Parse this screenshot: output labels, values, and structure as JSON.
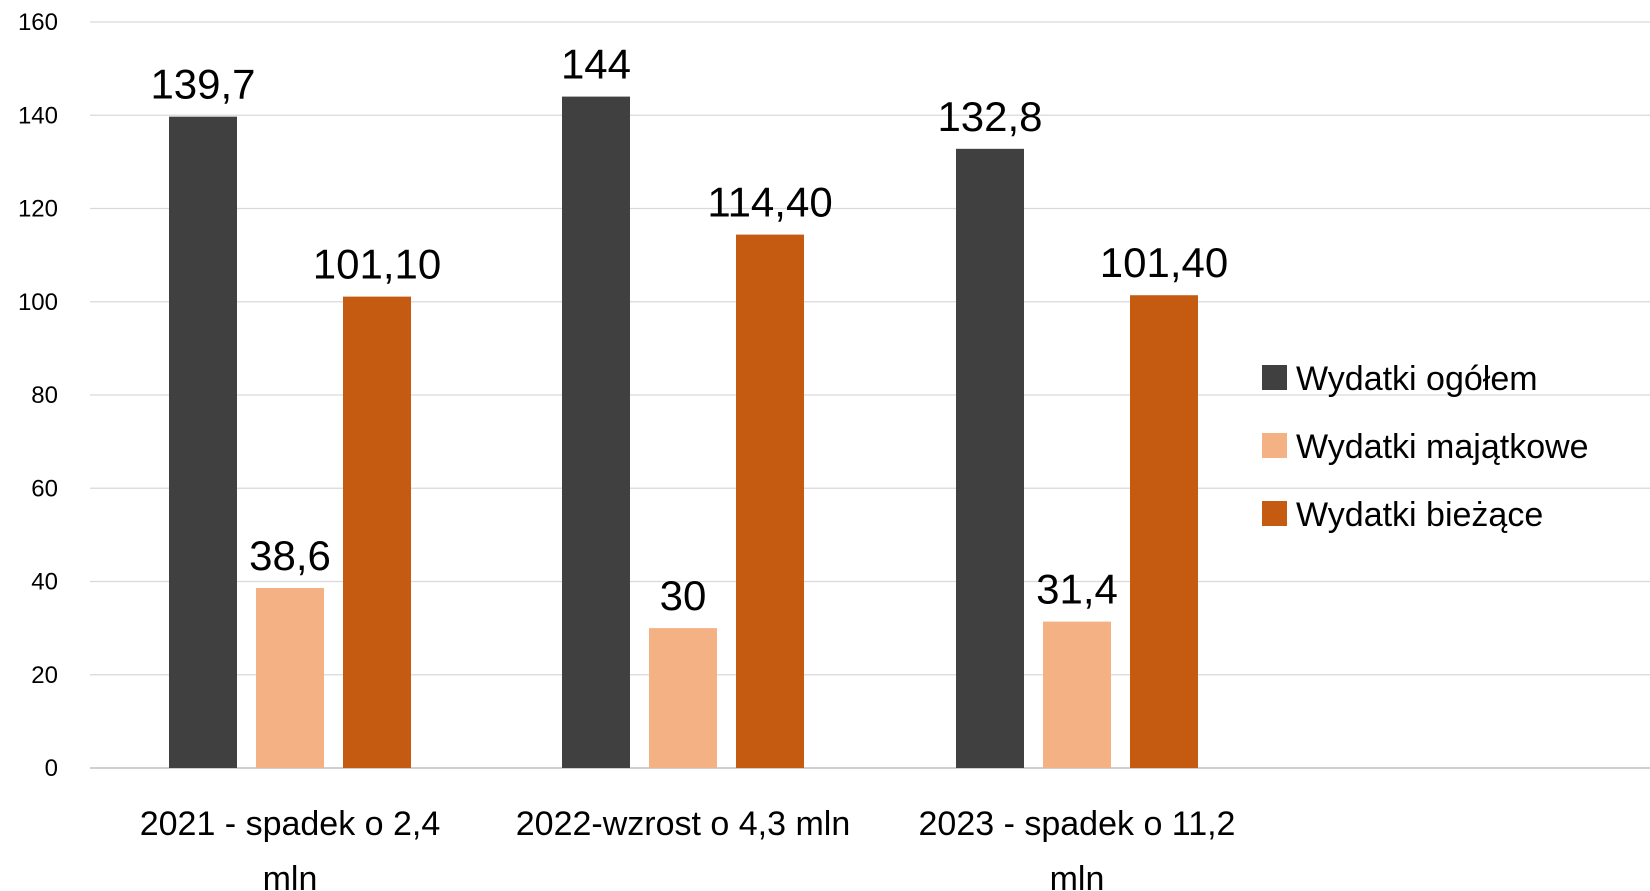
{
  "chart_data": {
    "type": "bar",
    "categories": [
      [
        "2021 - spadek o 2,4",
        "mln"
      ],
      [
        "2022-wzrost o 4,3 mln"
      ],
      [
        "2023 - spadek o 11,2",
        "mln"
      ]
    ],
    "series": [
      {
        "name": "Wydatki ogółem",
        "color": "#404040",
        "values": [
          139.7,
          144,
          132.8
        ],
        "labels": [
          "139,7",
          "144",
          "132,8"
        ]
      },
      {
        "name": "Wydatki majątkowe",
        "color": "#F4B183",
        "values": [
          38.6,
          30,
          31.4
        ],
        "labels": [
          "38,6",
          "30",
          "31,4"
        ]
      },
      {
        "name": "Wydatki bieżące",
        "color": "#C55A11",
        "values": [
          101.1,
          114.4,
          101.4
        ],
        "labels": [
          "101,10",
          "114,40",
          "101,40"
        ]
      }
    ],
    "title": "",
    "xlabel": "",
    "ylabel": "",
    "ylim": [
      0,
      160
    ],
    "yticks": [
      0,
      20,
      40,
      60,
      80,
      100,
      120,
      140,
      160
    ],
    "grid": true,
    "legend_position": "right"
  }
}
